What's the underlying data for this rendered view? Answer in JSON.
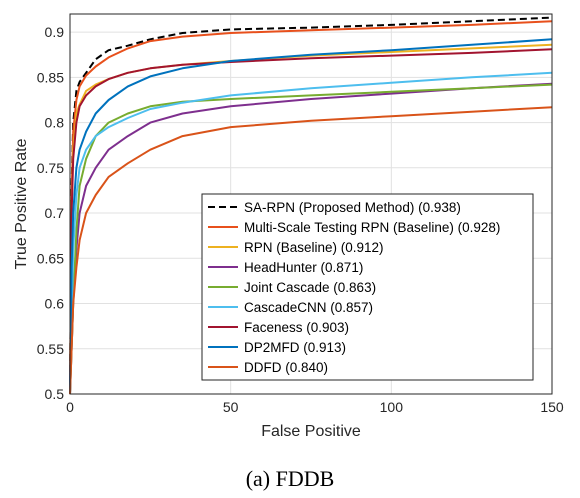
{
  "chart_data": {
    "type": "line",
    "title": "",
    "xlabel": "False Positive",
    "ylabel": "True Positive Rate",
    "caption": "(a)  FDDB",
    "xlim": [
      0,
      150
    ],
    "ylim": [
      0.5,
      0.92
    ],
    "xticks": [
      0,
      50,
      100,
      150
    ],
    "yticks": [
      0.5,
      0.55,
      0.6,
      0.65,
      0.7,
      0.75,
      0.8,
      0.85,
      0.9
    ],
    "grid": true,
    "legend_position": "bottom-right",
    "series": [
      {
        "name": "SA-RPN (Proposed Method) (0.938)",
        "color": "#000000",
        "dash": true,
        "x": [
          0,
          0.5,
          1,
          2,
          3,
          5,
          8,
          12,
          18,
          25,
          35,
          50,
          75,
          100,
          125,
          150
        ],
        "y": [
          0.5,
          0.73,
          0.8,
          0.835,
          0.845,
          0.855,
          0.87,
          0.88,
          0.885,
          0.892,
          0.899,
          0.903,
          0.905,
          0.908,
          0.912,
          0.916
        ]
      },
      {
        "name": "Multi-Scale Testing RPN (Baseline) (0.928)",
        "color": "#e8501c",
        "dash": false,
        "x": [
          0,
          0.5,
          1,
          2,
          3,
          5,
          8,
          12,
          18,
          25,
          35,
          50,
          75,
          100,
          125,
          150
        ],
        "y": [
          0.5,
          0.72,
          0.79,
          0.825,
          0.84,
          0.852,
          0.862,
          0.872,
          0.882,
          0.89,
          0.895,
          0.899,
          0.902,
          0.905,
          0.908,
          0.912
        ]
      },
      {
        "name": "RPN (Baseline) (0.912)",
        "color": "#edb120",
        "dash": false,
        "x": [
          0,
          0.5,
          1,
          2,
          3,
          5,
          8,
          12,
          18,
          25,
          35,
          50,
          75,
          100,
          125,
          150
        ],
        "y": [
          0.5,
          0.7,
          0.77,
          0.81,
          0.82,
          0.835,
          0.842,
          0.848,
          0.855,
          0.86,
          0.864,
          0.868,
          0.874,
          0.878,
          0.882,
          0.886
        ]
      },
      {
        "name": "HeadHunter (0.871)",
        "color": "#7e2f8e",
        "dash": false,
        "x": [
          0,
          1,
          2,
          3,
          5,
          8,
          12,
          18,
          25,
          35,
          50,
          75,
          100,
          125,
          150
        ],
        "y": [
          0.5,
          0.6,
          0.66,
          0.7,
          0.73,
          0.75,
          0.77,
          0.785,
          0.8,
          0.81,
          0.818,
          0.826,
          0.832,
          0.838,
          0.843
        ]
      },
      {
        "name": "Joint Cascade (0.863)",
        "color": "#77ac30",
        "dash": false,
        "x": [
          0,
          1,
          2,
          3,
          5,
          8,
          12,
          18,
          25,
          35,
          50,
          75,
          100,
          125,
          150
        ],
        "y": [
          0.5,
          0.6,
          0.68,
          0.73,
          0.76,
          0.785,
          0.8,
          0.81,
          0.818,
          0.823,
          0.826,
          0.83,
          0.834,
          0.838,
          0.842
        ]
      },
      {
        "name": "CascadeCNN (0.857)",
        "color": "#4dbeee",
        "dash": false,
        "x": [
          0,
          1,
          2,
          3,
          5,
          8,
          12,
          18,
          25,
          35,
          50,
          75,
          100,
          125,
          150
        ],
        "y": [
          0.5,
          0.66,
          0.72,
          0.75,
          0.77,
          0.785,
          0.795,
          0.805,
          0.815,
          0.822,
          0.83,
          0.838,
          0.844,
          0.85,
          0.855
        ]
      },
      {
        "name": "Faceness (0.903)",
        "color": "#a2142f",
        "dash": false,
        "x": [
          0,
          0.5,
          1,
          2,
          3,
          5,
          8,
          12,
          18,
          25,
          35,
          50,
          75,
          100,
          125,
          150
        ],
        "y": [
          0.5,
          0.7,
          0.76,
          0.8,
          0.818,
          0.83,
          0.84,
          0.848,
          0.855,
          0.86,
          0.864,
          0.867,
          0.871,
          0.874,
          0.877,
          0.881
        ]
      },
      {
        "name": "DP2MFD (0.913)",
        "color": "#0072bd",
        "dash": false,
        "x": [
          0,
          0.5,
          1,
          2,
          3,
          5,
          8,
          12,
          18,
          25,
          35,
          50,
          75,
          100,
          125,
          150
        ],
        "y": [
          0.5,
          0.64,
          0.7,
          0.75,
          0.77,
          0.79,
          0.81,
          0.825,
          0.84,
          0.851,
          0.86,
          0.868,
          0.875,
          0.88,
          0.886,
          0.892
        ]
      },
      {
        "name": "DDFD (0.840)",
        "color": "#d95319",
        "dash": false,
        "x": [
          0,
          1,
          2,
          3,
          5,
          8,
          12,
          18,
          25,
          35,
          50,
          75,
          100,
          125,
          150
        ],
        "y": [
          0.5,
          0.6,
          0.64,
          0.67,
          0.7,
          0.72,
          0.74,
          0.755,
          0.77,
          0.785,
          0.795,
          0.802,
          0.807,
          0.812,
          0.817
        ]
      }
    ]
  }
}
